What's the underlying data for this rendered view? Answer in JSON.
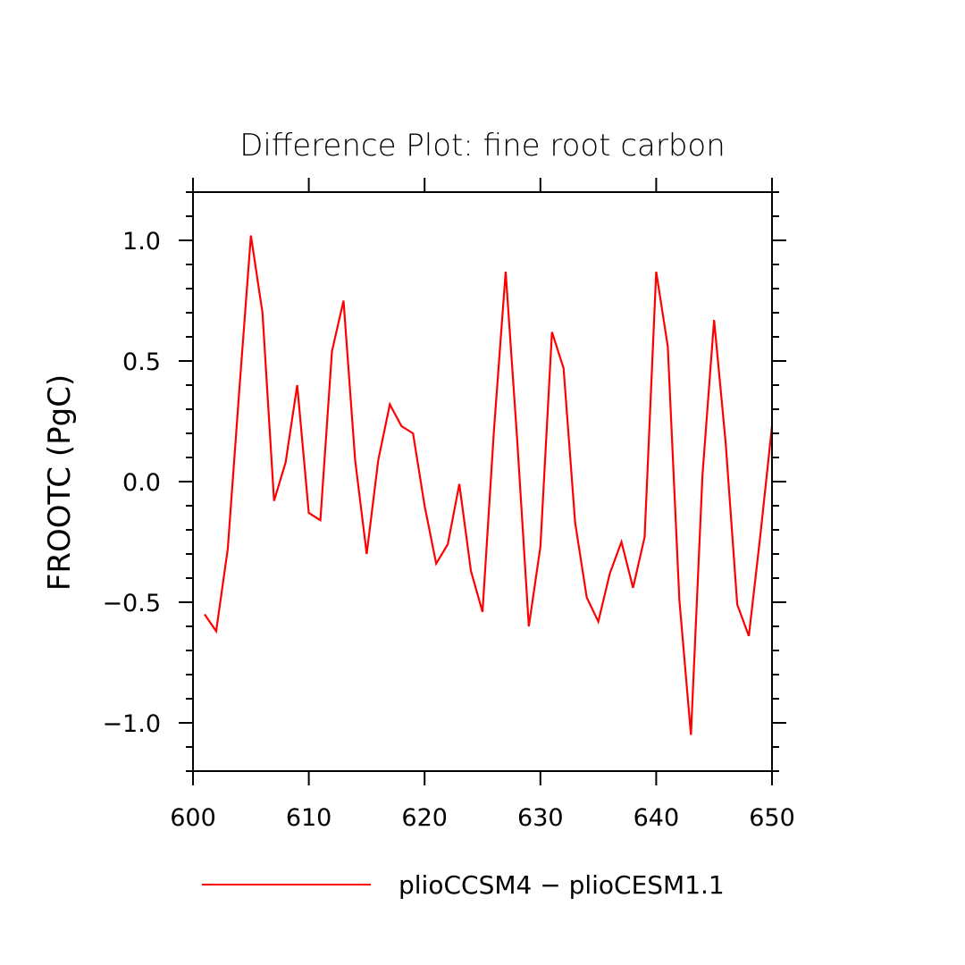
{
  "chart_data": {
    "type": "line",
    "title": "Difference Plot: fine root carbon",
    "xlabel": "",
    "ylabel": "FROOTC  (PgC)",
    "xlim": [
      600,
      650
    ],
    "ylim": [
      -1.2,
      1.2
    ],
    "x_ticks": [
      600,
      610,
      620,
      630,
      640,
      650
    ],
    "x_tick_labels": [
      "600",
      "610",
      "620",
      "630",
      "640",
      "650"
    ],
    "y_ticks": [
      1.0,
      0.5,
      0.0,
      -0.5,
      -1.0
    ],
    "y_tick_labels": [
      "1.0",
      "0.5",
      "0.0",
      "−0.5",
      "−1.0"
    ],
    "grid": false,
    "legend_position": "bottom",
    "series": [
      {
        "name": "plioCCSM4 − plioCESM1.1",
        "color": "#ff0000",
        "x": [
          601,
          602,
          603,
          604,
          605,
          606,
          607,
          608,
          609,
          610,
          611,
          612,
          613,
          614,
          615,
          616,
          617,
          618,
          619,
          620,
          621,
          622,
          623,
          624,
          625,
          626,
          627,
          628,
          629,
          630,
          631,
          632,
          633,
          634,
          635,
          636,
          637,
          638,
          639,
          640,
          641,
          642,
          643,
          644,
          645,
          646,
          647,
          648,
          649,
          650
        ],
        "values": [
          -0.55,
          -0.62,
          -0.28,
          0.38,
          1.02,
          0.7,
          -0.08,
          0.08,
          0.4,
          -0.13,
          -0.16,
          0.54,
          0.75,
          0.09,
          -0.3,
          0.09,
          0.32,
          0.23,
          0.2,
          -0.1,
          -0.34,
          -0.26,
          -0.01,
          -0.37,
          -0.54,
          0.22,
          0.87,
          0.17,
          -0.6,
          -0.27,
          0.62,
          0.47,
          -0.17,
          -0.48,
          -0.58,
          -0.38,
          -0.25,
          -0.44,
          -0.23,
          0.87,
          0.56,
          -0.49,
          -1.05,
          0.03,
          0.67,
          0.16,
          -0.51,
          -0.64,
          -0.22,
          0.23
        ]
      }
    ]
  }
}
